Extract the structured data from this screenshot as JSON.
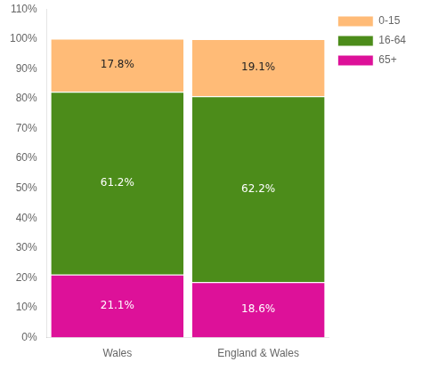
{
  "chart_data": {
    "type": "bar",
    "categories": [
      "Wales",
      "England & Wales"
    ],
    "series": [
      {
        "name": "65+",
        "color": "#DD1199",
        "values": [
          21.1,
          18.6
        ],
        "value_labels": [
          "21.1%",
          "18.6%"
        ]
      },
      {
        "name": "16-64",
        "color": "#4C8C1A",
        "values": [
          61.2,
          62.2
        ],
        "value_labels": [
          "61.2%",
          "62.2%"
        ]
      },
      {
        "name": "0-15",
        "color": "#FFBB77",
        "values": [
          17.8,
          19.1
        ],
        "value_labels": [
          "17.8%",
          "19.1%"
        ]
      }
    ],
    "stacked": true,
    "data_labels": true,
    "ylim": [
      0,
      110
    ],
    "yticks": [
      {
        "value": 0,
        "label": "0%"
      },
      {
        "value": 10,
        "label": "10%"
      },
      {
        "value": 20,
        "label": "20%"
      },
      {
        "value": 30,
        "label": "30%"
      },
      {
        "value": 40,
        "label": "40%"
      },
      {
        "value": 50,
        "label": "50%"
      },
      {
        "value": 60,
        "label": "60%"
      },
      {
        "value": 70,
        "label": "70%"
      },
      {
        "value": 80,
        "label": "80%"
      },
      {
        "value": 90,
        "label": "90%"
      },
      {
        "value": 100,
        "label": "100%"
      },
      {
        "value": 110,
        "label": "110%"
      }
    ],
    "grid": false,
    "legend": "right"
  }
}
